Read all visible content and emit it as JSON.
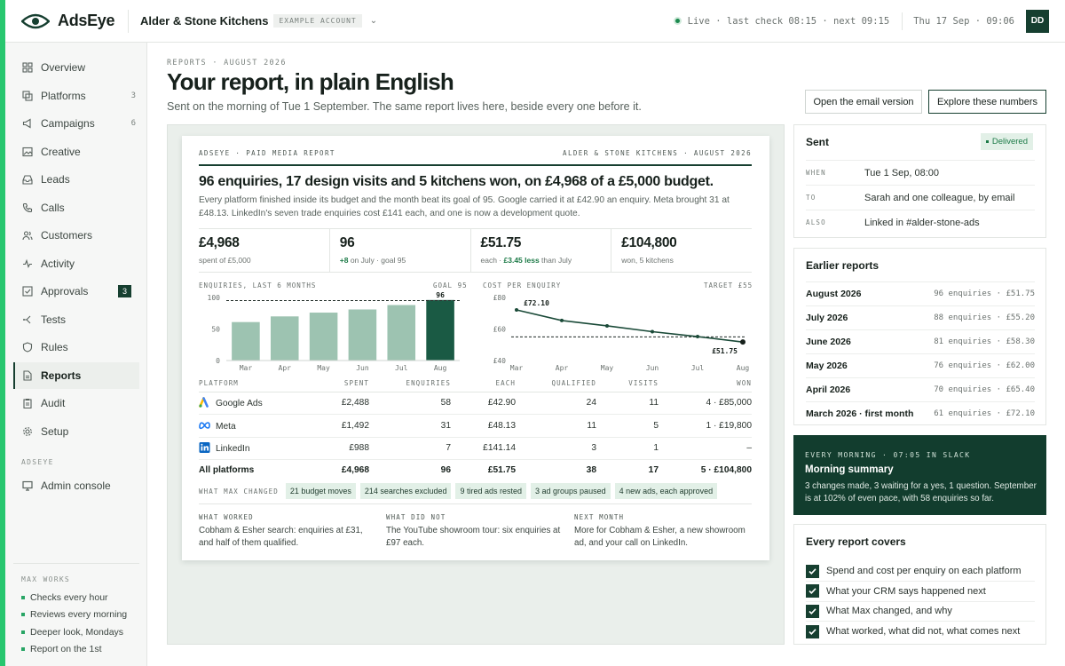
{
  "brand": {
    "name": "AdsEye"
  },
  "account": {
    "name": "Alder & Stone Kitchens",
    "badge": "EXAMPLE ACCOUNT"
  },
  "status": {
    "text": "Live · last check 08:15 · next 09:15",
    "datetime": "Thu 17 Sep · 09:06",
    "avatar": "DD"
  },
  "nav": [
    {
      "label": "Overview",
      "icon": "grid-icon"
    },
    {
      "label": "Platforms",
      "icon": "layers-icon",
      "count": "3"
    },
    {
      "label": "Campaigns",
      "icon": "megaphone-icon",
      "count": "6"
    },
    {
      "label": "Creative",
      "icon": "image-icon"
    },
    {
      "label": "Leads",
      "icon": "inbox-icon"
    },
    {
      "label": "Calls",
      "icon": "phone-icon"
    },
    {
      "label": "Customers",
      "icon": "users-icon"
    },
    {
      "label": "Activity",
      "icon": "activity-icon"
    },
    {
      "label": "Approvals",
      "icon": "check-square-icon",
      "count": "3"
    },
    {
      "label": "Tests",
      "icon": "split-icon"
    },
    {
      "label": "Rules",
      "icon": "shield-icon"
    },
    {
      "label": "Reports",
      "icon": "file-icon"
    },
    {
      "label": "Audit",
      "icon": "clipboard-icon"
    },
    {
      "label": "Setup",
      "icon": "gear-icon"
    }
  ],
  "admin_section": {
    "label": "ADSEYE",
    "item": "Admin console"
  },
  "max_works": {
    "label": "MAX WORKS",
    "items": [
      "Checks every hour",
      "Reviews every morning",
      "Deeper look, Mondays",
      "Report on the 1st"
    ]
  },
  "page": {
    "eyebrow": "REPORTS · AUGUST 2026",
    "title": "Your report, in plain English",
    "subtitle": "Sent on the morning of Tue 1 September. The same report lives here, beside every one before it.",
    "btn_email": "Open the email version",
    "btn_explore": "Explore these numbers"
  },
  "report": {
    "eyebrow_left": "ADSEYE · PAID MEDIA REPORT",
    "eyebrow_right": "ALDER & STONE KITCHENS · AUGUST 2026",
    "headline": "96 enquiries, 17 design visits and 5 kitchens won, on £4,968 of a £5,000 budget.",
    "lede": "Every platform finished inside its budget and the month beat its goal of 95. Google carried it at £42.90 an enquiry. Meta brought 31 at £48.13. LinkedIn's seven trade enquiries cost £141 each, and one is now a development quote.",
    "kpis": [
      {
        "value": "£4,968",
        "sub_pre": "spent of £5,000",
        "sub_bold": "",
        "sub_post": ""
      },
      {
        "value": "96",
        "sub_pre": "",
        "sub_bold": "+8",
        "sub_post": " on July · goal 95"
      },
      {
        "value": "£51.75",
        "sub_pre": "each · ",
        "sub_bold": "£3.45 less",
        "sub_post": " than July"
      },
      {
        "value": "£104,800",
        "sub_pre": "won, 5 kitchens",
        "sub_bold": "",
        "sub_post": ""
      }
    ],
    "table": {
      "headers": [
        "PLATFORM",
        "SPENT",
        "ENQUIRIES",
        "EACH",
        "QUALIFIED",
        "VISITS",
        "WON"
      ],
      "rows": [
        {
          "platform": "Google Ads",
          "icon": "google-ads-icon",
          "spent": "£2,488",
          "enquiries": "58",
          "each": "£42.90",
          "qualified": "24",
          "visits": "11",
          "won": "4 · £85,000"
        },
        {
          "platform": "Meta",
          "icon": "meta-icon",
          "spent": "£1,492",
          "enquiries": "31",
          "each": "£48.13",
          "qualified": "11",
          "visits": "5",
          "won": "1 · £19,800"
        },
        {
          "platform": "LinkedIn",
          "icon": "linkedin-icon",
          "spent": "£988",
          "enquiries": "7",
          "each": "£141.14",
          "qualified": "3",
          "visits": "1",
          "won": "–"
        }
      ],
      "total": {
        "platform": "All platforms",
        "spent": "£4,968",
        "enquiries": "96",
        "each": "£51.75",
        "qualified": "38",
        "visits": "17",
        "won": "5 · £104,800"
      }
    },
    "changes_label": "WHAT MAX CHANGED",
    "changes": [
      "21 budget moves",
      "214 searches excluded",
      "9 tired ads rested",
      "3 ad groups paused",
      "4 new ads, each approved"
    ],
    "what_worked": {
      "title": "WHAT WORKED",
      "body": "Cobham & Esher search: enquiries at £31, and half of them qualified."
    },
    "what_did_not": {
      "title": "WHAT DID NOT",
      "body": "The YouTube showroom tour: six enquiries at £97 each."
    },
    "next_month": {
      "title": "NEXT MONTH",
      "body": "More for Cobham & Esher, a new showroom ad, and your call on LinkedIn."
    }
  },
  "chart_data": [
    {
      "type": "bar",
      "title": "ENQUIRIES, LAST 6 MONTHS",
      "goal_label": "GOAL 95",
      "goal": 95,
      "categories": [
        "Mar",
        "Apr",
        "May",
        "Jun",
        "Jul",
        "Aug"
      ],
      "values": [
        61,
        70,
        76,
        81,
        88,
        96
      ],
      "data_labels": [
        "",
        "",
        "",
        "",
        "",
        "96"
      ],
      "yticks": [
        "100",
        "50",
        "0"
      ],
      "ylim": [
        0,
        100
      ],
      "colors": {
        "bar": "#9dc3b1",
        "highlight": "#1a5a44"
      }
    },
    {
      "type": "line",
      "title": "COST PER ENQUIRY",
      "target_label": "TARGET £55",
      "target": 55,
      "categories": [
        "Mar",
        "Apr",
        "May",
        "Jun",
        "Jul",
        "Aug"
      ],
      "values": [
        72.1,
        65.4,
        62.0,
        58.3,
        55.2,
        51.75
      ],
      "data_labels": [
        "£72.10",
        "",
        "",
        "",
        "",
        "£51.75"
      ],
      "yticks": [
        "£80",
        "£60",
        "£40"
      ],
      "ylim": [
        40,
        80
      ],
      "colors": {
        "line": "#1a4a38"
      }
    }
  ],
  "sent": {
    "title": "Sent",
    "badge": "Delivered",
    "rows": [
      {
        "k": "WHEN",
        "v": "Tue 1 Sep, 08:00"
      },
      {
        "k": "TO",
        "v": "Sarah and one colleague, by email"
      },
      {
        "k": "ALSO",
        "v": "Linked in #alder-stone-ads"
      }
    ]
  },
  "earlier": {
    "title": "Earlier reports",
    "rows": [
      {
        "month": "August 2026",
        "stats": "96 enquiries · £51.75"
      },
      {
        "month": "July 2026",
        "stats": "88 enquiries · £55.20"
      },
      {
        "month": "June 2026",
        "stats": "81 enquiries · £58.30"
      },
      {
        "month": "May 2026",
        "stats": "76 enquiries · £62.00"
      },
      {
        "month": "April 2026",
        "stats": "70 enquiries · £65.40"
      },
      {
        "month": "March 2026 · first month",
        "stats": "61 enquiries · £72.10"
      }
    ]
  },
  "morning": {
    "eyebrow": "EVERY MORNING · 07:05 IN SLACK",
    "title": "Morning summary",
    "body": "3 changes made, 3 waiting for a yes, 1 question. September is at 102% of even pace, with 58 enquiries so far."
  },
  "covers": {
    "title": "Every report covers",
    "items": [
      "Spend and cost per enquiry on each platform",
      "What your CRM says happened next",
      "What Max changed, and why",
      "What worked, what did not, what comes next"
    ]
  },
  "colors": {
    "accent": "#28c76f",
    "dark": "#163f30",
    "panel_bg": "#eaefeb"
  }
}
